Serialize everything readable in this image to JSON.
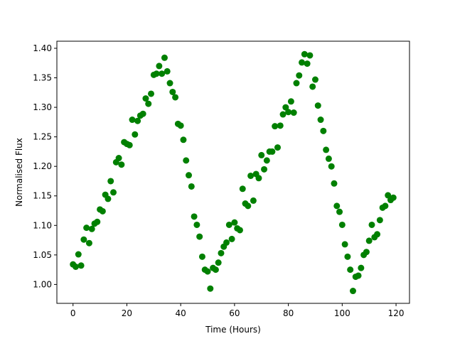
{
  "chart_data": {
    "type": "scatter",
    "title": "",
    "xlabel": "Time (Hours)",
    "ylabel": "Normalised Flux",
    "xlim": [
      -6,
      125
    ],
    "ylim": [
      0.968,
      1.412
    ],
    "xticks": [
      0,
      20,
      40,
      60,
      80,
      100,
      120
    ],
    "yticks": [
      1.0,
      1.05,
      1.1,
      1.15,
      1.2,
      1.25,
      1.3,
      1.35,
      1.4
    ],
    "ytick_labels": [
      "1.00",
      "1.05",
      "1.10",
      "1.15",
      "1.20",
      "1.25",
      "1.30",
      "1.35",
      "1.40"
    ],
    "grid": false,
    "marker_color": "#008000",
    "series": [
      {
        "points": [
          [
            0,
            1.034
          ],
          [
            1,
            1.03
          ],
          [
            2,
            1.051
          ],
          [
            3,
            1.032
          ],
          [
            4,
            1.076
          ],
          [
            5,
            1.096
          ],
          [
            6,
            1.07
          ],
          [
            7,
            1.094
          ],
          [
            8,
            1.103
          ],
          [
            9,
            1.106
          ],
          [
            10,
            1.127
          ],
          [
            11,
            1.124
          ],
          [
            12,
            1.152
          ],
          [
            13,
            1.145
          ],
          [
            14,
            1.175
          ],
          [
            15,
            1.156
          ],
          [
            16,
            1.207
          ],
          [
            17,
            1.214
          ],
          [
            18,
            1.203
          ],
          [
            19,
            1.241
          ],
          [
            20,
            1.238
          ],
          [
            21,
            1.236
          ],
          [
            22,
            1.279
          ],
          [
            23,
            1.254
          ],
          [
            24,
            1.277
          ],
          [
            25,
            1.286
          ],
          [
            26,
            1.289
          ],
          [
            27,
            1.315
          ],
          [
            28,
            1.306
          ],
          [
            29,
            1.323
          ],
          [
            30,
            1.355
          ],
          [
            31,
            1.357
          ],
          [
            32,
            1.37
          ],
          [
            33,
            1.357
          ],
          [
            34,
            1.384
          ],
          [
            35,
            1.361
          ],
          [
            36,
            1.341
          ],
          [
            37,
            1.326
          ],
          [
            38,
            1.317
          ],
          [
            39,
            1.272
          ],
          [
            40,
            1.269
          ],
          [
            41,
            1.245
          ],
          [
            42,
            1.21
          ],
          [
            43,
            1.185
          ],
          [
            44,
            1.166
          ],
          [
            45,
            1.115
          ],
          [
            46,
            1.101
          ],
          [
            47,
            1.081
          ],
          [
            48,
            1.047
          ],
          [
            49,
            1.025
          ],
          [
            50,
            1.022
          ],
          [
            51,
            0.993
          ],
          [
            52,
            1.028
          ],
          [
            53,
            1.025
          ],
          [
            54,
            1.037
          ],
          [
            55,
            1.053
          ],
          [
            56,
            1.064
          ],
          [
            57,
            1.071
          ],
          [
            58,
            1.101
          ],
          [
            59,
            1.077
          ],
          [
            60,
            1.105
          ],
          [
            61,
            1.095
          ],
          [
            62,
            1.092
          ],
          [
            63,
            1.162
          ],
          [
            64,
            1.137
          ],
          [
            65,
            1.133
          ],
          [
            66,
            1.184
          ],
          [
            67,
            1.142
          ],
          [
            68,
            1.187
          ],
          [
            69,
            1.18
          ],
          [
            70,
            1.219
          ],
          [
            71,
            1.195
          ],
          [
            72,
            1.21
          ],
          [
            73,
            1.225
          ],
          [
            74,
            1.225
          ],
          [
            75,
            1.268
          ],
          [
            76,
            1.232
          ],
          [
            77,
            1.269
          ],
          [
            78,
            1.288
          ],
          [
            79,
            1.3
          ],
          [
            80,
            1.292
          ],
          [
            81,
            1.31
          ],
          [
            82,
            1.291
          ],
          [
            83,
            1.341
          ],
          [
            84,
            1.354
          ],
          [
            85,
            1.376
          ],
          [
            86,
            1.39
          ],
          [
            87,
            1.374
          ],
          [
            88,
            1.388
          ],
          [
            89,
            1.335
          ],
          [
            90,
            1.347
          ],
          [
            91,
            1.303
          ],
          [
            92,
            1.279
          ],
          [
            93,
            1.26
          ],
          [
            94,
            1.228
          ],
          [
            95,
            1.213
          ],
          [
            96,
            1.2
          ],
          [
            97,
            1.171
          ],
          [
            98,
            1.133
          ],
          [
            99,
            1.123
          ],
          [
            100,
            1.101
          ],
          [
            101,
            1.068
          ],
          [
            102,
            1.047
          ],
          [
            103,
            1.025
          ],
          [
            104,
            0.989
          ],
          [
            105,
            1.013
          ],
          [
            106,
            1.015
          ],
          [
            107,
            1.028
          ],
          [
            108,
            1.05
          ],
          [
            109,
            1.055
          ],
          [
            110,
            1.074
          ],
          [
            111,
            1.101
          ],
          [
            112,
            1.08
          ],
          [
            113,
            1.085
          ],
          [
            114,
            1.109
          ],
          [
            115,
            1.13
          ],
          [
            116,
            1.133
          ],
          [
            117,
            1.151
          ],
          [
            118,
            1.143
          ],
          [
            119,
            1.147
          ]
        ]
      }
    ]
  }
}
